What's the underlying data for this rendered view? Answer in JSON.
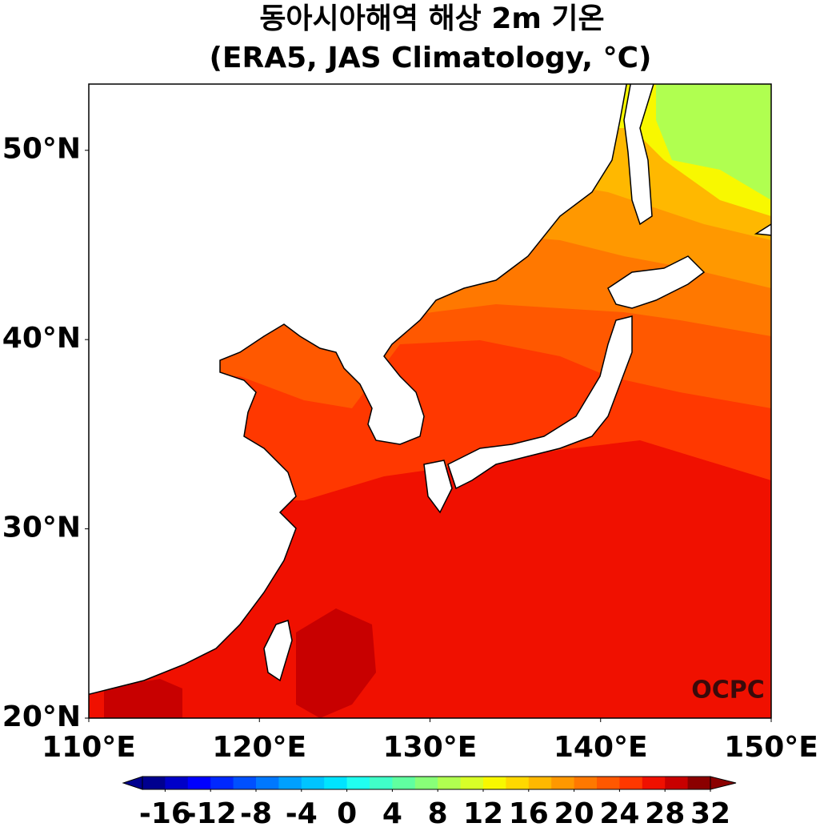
{
  "map": {
    "title": "동아시아해역 해상 2m 기온",
    "subtitle": "(ERA5, JAS Climatology, °C)",
    "watermark": "OCPC",
    "xlim": [
      110,
      150
    ],
    "ylim": [
      20,
      53.5
    ],
    "xticks": [
      {
        "value": 110,
        "label": "110°E"
      },
      {
        "value": 120,
        "label": "120°E"
      },
      {
        "value": 130,
        "label": "130°E"
      },
      {
        "value": 140,
        "label": "140°E"
      },
      {
        "value": 150,
        "label": "150°E"
      }
    ],
    "yticks": [
      {
        "value": 20,
        "label": "20°N"
      },
      {
        "value": 30,
        "label": "30°N"
      },
      {
        "value": 40,
        "label": "40°N"
      },
      {
        "value": 50,
        "label": "50°N"
      }
    ],
    "colorbar": {
      "limits": [
        -18,
        32
      ],
      "ticks": [
        -16,
        -12,
        -8,
        -4,
        0,
        4,
        8,
        12,
        16,
        20,
        24,
        28,
        32
      ],
      "colors": [
        "#00008f",
        "#0000c8",
        "#0000ff",
        "#0028ff",
        "#0050ff",
        "#0078ff",
        "#00a0ff",
        "#00c4ff",
        "#00e4ff",
        "#20fff0",
        "#40ffc8",
        "#60ffa0",
        "#88ff78",
        "#b0ff50",
        "#d8ff28",
        "#f8f800",
        "#ffd800",
        "#ffb800",
        "#ff9800",
        "#ff7800",
        "#ff5800",
        "#ff3800",
        "#f01000",
        "#c80000",
        "#8b0000"
      ]
    }
  }
}
